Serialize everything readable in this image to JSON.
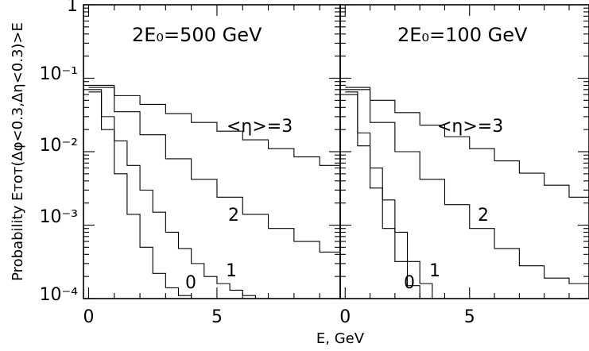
{
  "chart_data": [
    {
      "type": "line",
      "step": true,
      "panel_label": "2E₀=500 GeV",
      "xlabel": "E, GeV",
      "ylabel": "Probability Eᴛᴏᴛ(Δφ<0.3,Δη<0.3)>E",
      "xlim": [
        -0.2,
        9.8
      ],
      "ylim": [
        0.0001,
        1
      ],
      "yscale": "log",
      "x_ticks": [
        "0",
        "5"
      ],
      "y_ticks": [
        "1",
        "10⁻¹",
        "10⁻²",
        "10⁻³",
        "10⁻⁴"
      ],
      "series": [
        {
          "name": "<η>=3",
          "x": [
            0,
            1,
            2,
            3,
            4,
            5,
            6,
            7,
            8,
            9,
            9.8
          ],
          "values": [
            0.08,
            0.058,
            0.044,
            0.033,
            0.025,
            0.019,
            0.0145,
            0.011,
            0.0085,
            0.0065,
            0.0048
          ]
        },
        {
          "name": "2",
          "x": [
            0,
            1,
            2,
            3,
            4,
            5,
            6,
            7,
            8,
            9,
            9.8
          ],
          "values": [
            0.075,
            0.035,
            0.017,
            0.008,
            0.0042,
            0.0024,
            0.0014,
            0.0009,
            0.0006,
            0.00043,
            0.0003
          ]
        },
        {
          "name": "1",
          "x": [
            0,
            0.5,
            1,
            1.5,
            2,
            2.5,
            3,
            3.5,
            4,
            4.5,
            5,
            5.5,
            6,
            6.5
          ],
          "values": [
            0.07,
            0.03,
            0.014,
            0.0065,
            0.003,
            0.0015,
            0.0008,
            0.00048,
            0.0003,
            0.0002,
            0.00016,
            0.00013,
            0.00011,
            0.0001
          ]
        },
        {
          "name": "0",
          "x": [
            0,
            0.5,
            1,
            1.5,
            2,
            2.5,
            3,
            3.5,
            4
          ],
          "values": [
            0.065,
            0.02,
            0.005,
            0.0014,
            0.0005,
            0.00022,
            0.00014,
            0.00011,
            0.0001
          ]
        }
      ]
    },
    {
      "type": "line",
      "step": true,
      "panel_label": "2E₀=100 GeV",
      "xlabel": "E, GeV",
      "xlim": [
        -0.2,
        9.8
      ],
      "ylim": [
        0.0001,
        1
      ],
      "yscale": "log",
      "x_ticks": [
        "0",
        "5"
      ],
      "series": [
        {
          "name": "<η>=3",
          "x": [
            0,
            1,
            2,
            3,
            4,
            5,
            6,
            7,
            8,
            9,
            9.8
          ],
          "values": [
            0.075,
            0.05,
            0.034,
            0.023,
            0.016,
            0.011,
            0.0075,
            0.0051,
            0.0035,
            0.0024,
            0.0017
          ]
        },
        {
          "name": "2",
          "x": [
            0,
            1,
            2,
            3,
            4,
            5,
            6,
            7,
            8,
            9,
            9.8
          ],
          "values": [
            0.07,
            0.025,
            0.01,
            0.0042,
            0.0019,
            0.0009,
            0.00048,
            0.00028,
            0.00019,
            0.00016,
            0.00013
          ]
        },
        {
          "name": "1",
          "x": [
            0,
            0.5,
            1,
            1.5,
            2,
            2.5,
            3,
            3.5
          ],
          "values": [
            0.065,
            0.018,
            0.006,
            0.0022,
            0.0008,
            0.00032,
            0.00016,
            0.0001
          ]
        },
        {
          "name": "0",
          "x": [
            0,
            0.5,
            1,
            1.5,
            2,
            2.5,
            3
          ],
          "values": [
            0.06,
            0.012,
            0.0032,
            0.0009,
            0.00032,
            0.00015,
            0.0001
          ]
        }
      ]
    }
  ]
}
